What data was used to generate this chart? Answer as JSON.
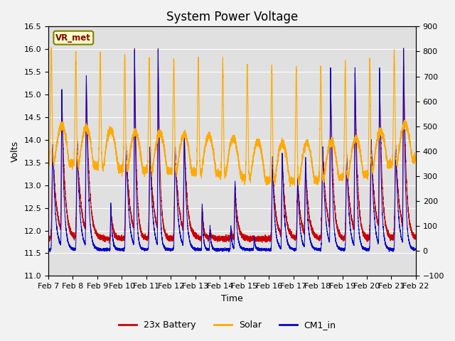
{
  "title": "System Power Voltage",
  "ylabel_left": "Volts",
  "xlabel": "Time",
  "ylim_left": [
    11.0,
    16.5
  ],
  "ylim_right": [
    -100,
    900
  ],
  "yticks_left": [
    11.0,
    11.5,
    12.0,
    12.5,
    13.0,
    13.5,
    14.0,
    14.5,
    15.0,
    15.5,
    16.0,
    16.5
  ],
  "yticks_right": [
    -100,
    0,
    100,
    200,
    300,
    400,
    500,
    600,
    700,
    800,
    900
  ],
  "xtick_labels": [
    "Feb 7",
    "Feb 8",
    "Feb 9",
    "Feb 10",
    "Feb 11",
    "Feb 12",
    "Feb 13",
    "Feb 14",
    "Feb 15",
    "Feb 16",
    "Feb 17",
    "Feb 18",
    "Feb 19",
    "Feb 20",
    "Feb 21",
    "Feb 22"
  ],
  "annotation_text": "VR_met",
  "legend_entries": [
    "23x Battery",
    "Solar",
    "CM1_in"
  ],
  "colors": {
    "battery": "#cc0000",
    "solar": "#ffaa00",
    "cm1": "#0000cc"
  },
  "plot_bg_color": "#e0e0e0",
  "title_fontsize": 12,
  "label_fontsize": 9,
  "tick_fontsize": 8,
  "n_points": 8000,
  "n_days": 15
}
